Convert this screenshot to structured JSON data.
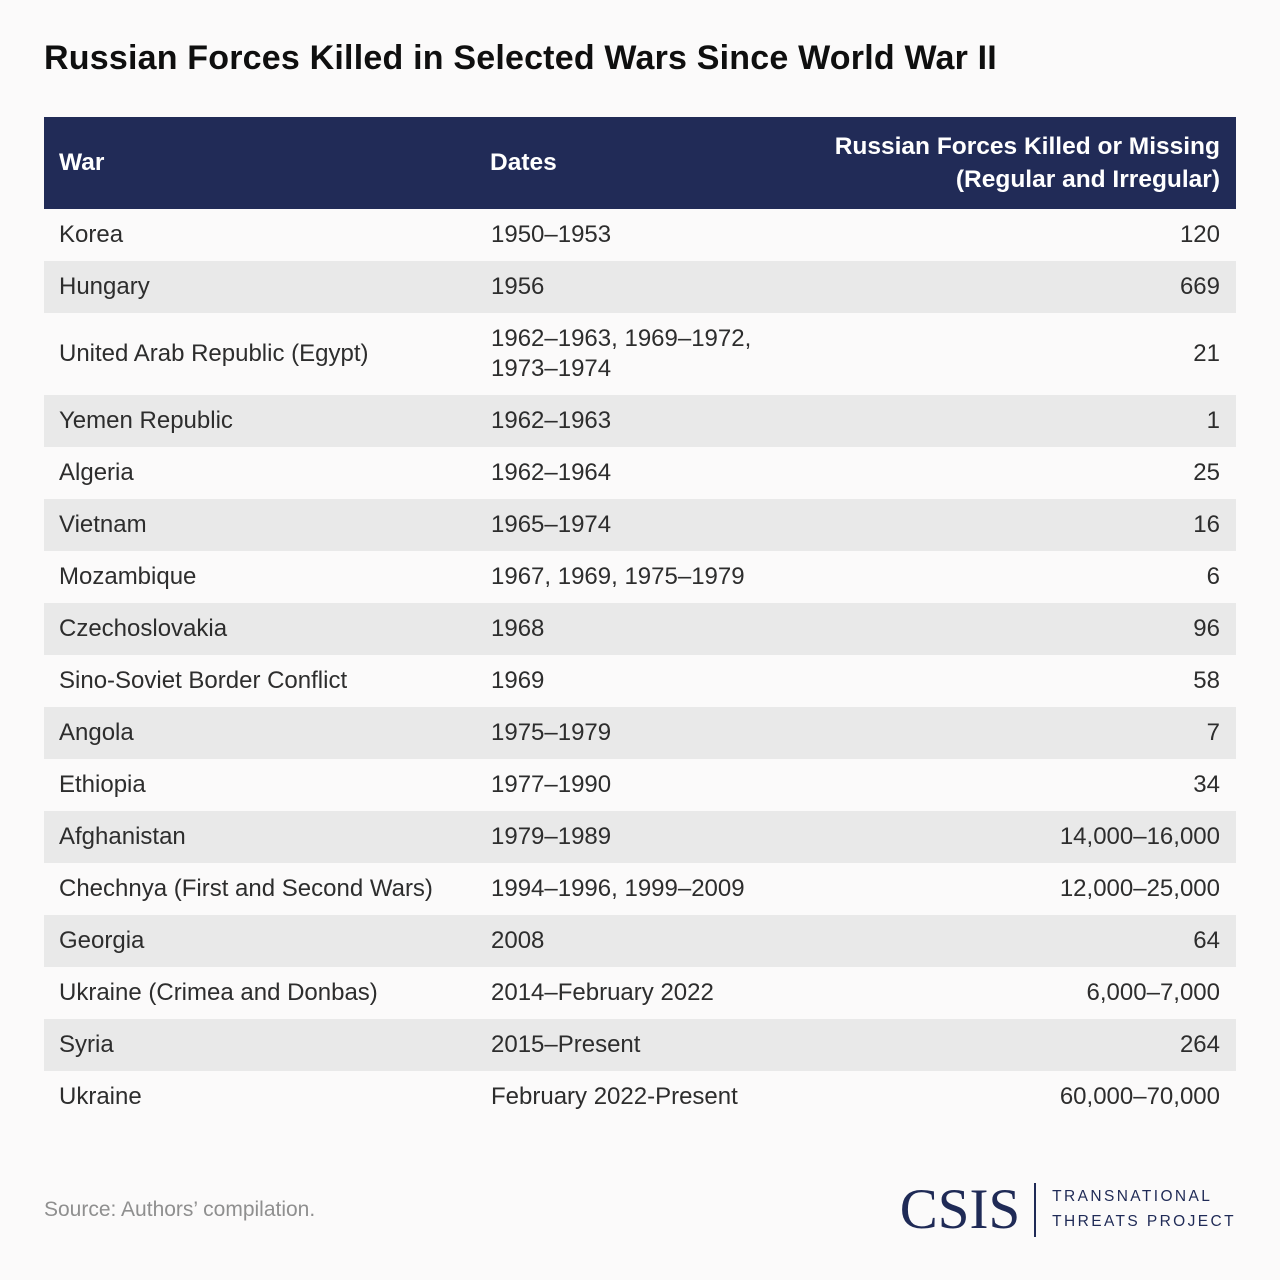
{
  "page": {
    "title": "Russian Forces Killed in Selected Wars Since World War II",
    "source": "Source: Authors’ compilation.",
    "logo": {
      "acronym": "CSIS",
      "program_line1": "TRANSNATIONAL",
      "program_line2": "THREATS PROJECT"
    }
  },
  "colors": {
    "header_navy": "#212b57",
    "row_alt_gray": "#e9e9e9",
    "background": "#fbfafa",
    "body_text": "#2d2d2d",
    "muted_text": "#8f8f8f",
    "logo_navy": "#1f2a56"
  },
  "table": {
    "header": {
      "war": "War",
      "dates": "Dates",
      "killed_line1": "Russian Forces Killed or Missing",
      "killed_line2": "(Regular and Irregular)"
    }
  },
  "chart_data": {
    "type": "table",
    "title": "Russian Forces Killed in Selected Wars Since World War II",
    "columns": [
      "War",
      "Dates",
      "Russian Forces Killed or Missing (Regular and Irregular)"
    ],
    "rows": [
      [
        "Korea",
        "1950–1953",
        "120"
      ],
      [
        "Hungary",
        "1956",
        "669"
      ],
      [
        "United Arab Republic (Egypt)",
        "1962–1963, 1969–1972, 1973–1974",
        "21"
      ],
      [
        "Yemen Republic",
        "1962–1963",
        "1"
      ],
      [
        "Algeria",
        "1962–1964",
        "25"
      ],
      [
        "Vietnam",
        "1965–1974",
        "16"
      ],
      [
        "Mozambique",
        "1967, 1969, 1975–1979",
        "6"
      ],
      [
        "Czechoslovakia",
        "1968",
        "96"
      ],
      [
        "Sino-Soviet Border Conflict",
        "1969",
        "58"
      ],
      [
        "Angola",
        "1975–1979",
        "7"
      ],
      [
        "Ethiopia",
        "1977–1990",
        "34"
      ],
      [
        "Afghanistan",
        "1979–1989",
        "14,000–16,000"
      ],
      [
        "Chechnya (First and Second Wars)",
        "1994–1996, 1999–2009",
        "12,000–25,000"
      ],
      [
        "Georgia",
        "2008",
        "64"
      ],
      [
        "Ukraine (Crimea and Donbas)",
        "2014–February 2022",
        "6,000–7,000"
      ],
      [
        "Syria",
        "2015–Present",
        "264"
      ],
      [
        "Ukraine",
        "February 2022-Present",
        "60,000–70,000"
      ]
    ],
    "source": "Source: Authors’ compilation."
  }
}
